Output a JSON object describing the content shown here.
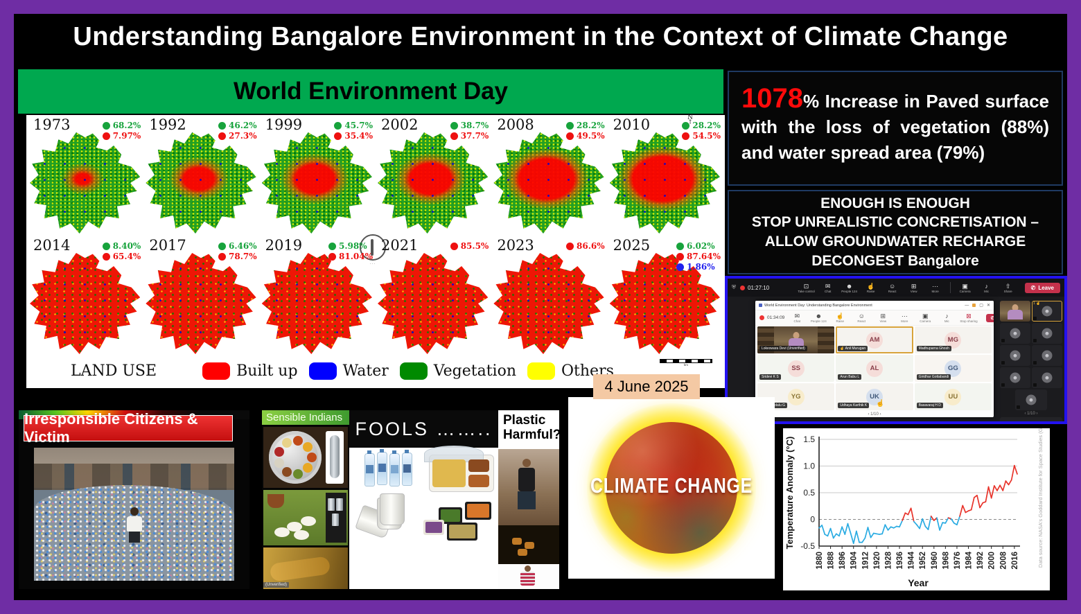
{
  "slide": {
    "title": "Understanding Bangalore Environment in the Context of Climate Change",
    "banner": "World Environment Day",
    "date_label": "4 June 2025"
  },
  "colors": {
    "frame_purple": "#6F2DA4",
    "banner_green": "#00A84F",
    "builtup_red": "#FF0000",
    "water_blue": "#0000FF",
    "vegetation_green": "#008A00",
    "others_yellow": "#FFFF00",
    "date_chip": "#F4C9A4",
    "meeting_border": "#2312F0",
    "highlight_red": "#FF0A0A"
  },
  "maps": {
    "years": [
      {
        "year": "1973",
        "green": "68.2%",
        "red": "7.97%"
      },
      {
        "year": "1992",
        "green": "46.2%",
        "red": "27.3%"
      },
      {
        "year": "1999",
        "green": "45.7%",
        "red": "35.4%"
      },
      {
        "year": "2002",
        "green": "38.7%",
        "red": "37.7%"
      },
      {
        "year": "2008",
        "green": "28.2%",
        "red": "49.5%"
      },
      {
        "year": "2010",
        "green": "28.2%",
        "red": "54.5%",
        "north_arrow": true
      },
      {
        "year": "2014",
        "green": "8.40%",
        "red": "65.4%"
      },
      {
        "year": "2017",
        "green": "6.46%",
        "red": "78.7%"
      },
      {
        "year": "2019",
        "green": "5.98%",
        "red": "81.04%"
      },
      {
        "year": "2021",
        "red": "85.5%"
      },
      {
        "year": "2023",
        "red": "86.6%"
      },
      {
        "year": "2025",
        "green": "6.02%",
        "red": "87.64%",
        "blue": "1.86%"
      }
    ],
    "legend": {
      "title": "LAND USE",
      "items": [
        {
          "label": "Built up",
          "color": "#FF0000"
        },
        {
          "label": "Water",
          "color": "#0000FF"
        },
        {
          "label": "Vegetation",
          "color": "#008A00"
        },
        {
          "label": "Others",
          "color": "#FFFF00"
        }
      ]
    }
  },
  "stats_box": {
    "highlight": "1078",
    "rest": "% Increase in Paved surface with the loss of vegetation (88%) and water spread area (79%)"
  },
  "slogan_box": {
    "lines": [
      "ENOUGH IS ENOUGH",
      "STOP UNREALISTIC CONCRETISATION – ALLOW GROUNDWATER RECHARGE",
      "DECONGEST Bangalore"
    ]
  },
  "meeting": {
    "outer_toolbar": {
      "timer": "01:27:10",
      "buttons": [
        "Take control",
        "Chat",
        "People",
        "Raise",
        "React",
        "View",
        "More"
      ],
      "device_buttons": [
        "Camera",
        "Mic",
        "Share"
      ],
      "people_count": "124",
      "leave_label": "Leave"
    },
    "window_title": "World Environment Day: Understanding Bangalore Environment",
    "inner_toolbar": {
      "timer": "01:34:09",
      "buttons": [
        "Chat",
        "People",
        "Raise",
        "React",
        "View",
        "More"
      ],
      "device_buttons": [
        "Camera",
        "Mic",
        "Stop sharing"
      ],
      "people_count": "124",
      "leave_label": "Leave"
    },
    "participants": [
      {
        "type": "video",
        "name": "Lokeswara Devi (Unverified)"
      },
      {
        "initials": "AM",
        "name": "Anil Murugan",
        "bg": "#f5ddd9",
        "fg": "#8a3f4a",
        "active": true,
        "hand": true
      },
      {
        "initials": "MG",
        "name": "Madhuparna Ghosh",
        "bg": "#f5ddd9",
        "fg": "#8a3f4a"
      },
      {
        "initials": "SS",
        "name": "Sridevi K S",
        "bg": "#f5ddd9",
        "fg": "#8a3f4a"
      },
      {
        "initials": "AL",
        "name": "Arun Babu L",
        "bg": "#f5ddd9",
        "fg": "#8a3f4a"
      },
      {
        "initials": "GG",
        "name": "Giridhar Gottabandi",
        "bg": "#d5dfee",
        "fg": "#40587a"
      },
      {
        "initials": "YG",
        "name": "Yedukondalu G",
        "bg": "#f8eccb",
        "fg": "#8a7334"
      },
      {
        "initials": "UK",
        "name": "Udhaya Karthik K",
        "bg": "#d5dfee",
        "fg": "#40587a",
        "emoji": "☝"
      },
      {
        "initials": "UU",
        "name": "Basavaraj H D",
        "bg": "#f8eccb",
        "fg": "#8a7334"
      }
    ],
    "pagination": "1/10",
    "sidebar": {
      "reaction_badge": "1 ☝",
      "pagination": "1/10"
    }
  },
  "bottom": {
    "irresponsible": {
      "title": "Irresponsible Citizens & Victim"
    },
    "sensible": {
      "title": "Sensible Indians",
      "watermark": "(Unverified)"
    },
    "fools": {
      "title": "FOOLS …….."
    },
    "plastic": {
      "title": "Plastic Harmful?"
    },
    "climate": {
      "title": "CLIMATE CHANGE"
    }
  },
  "chart_data": {
    "type": "line",
    "title": "",
    "xlabel": "Year",
    "ylabel": "Temperature Anomaly (°C)",
    "source_note": "Data source: NASA's Goddard Institute for Space Studies (GISS)",
    "xlim": [
      1880,
      2018
    ],
    "ylim": [
      -0.5,
      1.5
    ],
    "x_ticks": [
      1880,
      1888,
      1896,
      1904,
      1912,
      1920,
      1928,
      1936,
      1944,
      1952,
      1960,
      1968,
      1976,
      1984,
      1992,
      2000,
      2008,
      2016
    ],
    "y_ticks": [
      -0.5,
      0,
      0.5,
      1.0,
      1.5
    ],
    "zero_line_dashed": true,
    "colors": {
      "above_zero": "#e8332a",
      "below_zero": "#29abe2"
    },
    "x": [
      1880,
      1882,
      1884,
      1886,
      1888,
      1890,
      1892,
      1894,
      1896,
      1898,
      1900,
      1902,
      1904,
      1906,
      1908,
      1910,
      1912,
      1914,
      1916,
      1918,
      1920,
      1922,
      1924,
      1926,
      1928,
      1930,
      1932,
      1934,
      1936,
      1938,
      1940,
      1942,
      1944,
      1946,
      1948,
      1950,
      1952,
      1954,
      1956,
      1958,
      1960,
      1962,
      1964,
      1966,
      1968,
      1970,
      1972,
      1974,
      1976,
      1978,
      1980,
      1982,
      1984,
      1986,
      1988,
      1990,
      1992,
      1994,
      1996,
      1998,
      2000,
      2002,
      2004,
      2006,
      2008,
      2010,
      2012,
      2014,
      2016,
      2018
    ],
    "y": [
      -0.16,
      -0.11,
      -0.28,
      -0.31,
      -0.17,
      -0.35,
      -0.27,
      -0.31,
      -0.14,
      -0.28,
      -0.08,
      -0.26,
      -0.45,
      -0.22,
      -0.43,
      -0.43,
      -0.35,
      -0.15,
      -0.34,
      -0.26,
      -0.27,
      -0.28,
      -0.27,
      -0.1,
      -0.2,
      -0.14,
      -0.16,
      -0.13,
      -0.14,
      -0.02,
      0.12,
      0.09,
      0.21,
      -0.04,
      -0.1,
      -0.17,
      0.01,
      -0.13,
      -0.19,
      0.06,
      -0.02,
      0.03,
      -0.2,
      -0.06,
      -0.07,
      0.03,
      0.01,
      -0.07,
      -0.1,
      0.06,
      0.26,
      0.13,
      0.16,
      0.18,
      0.41,
      0.45,
      0.22,
      0.31,
      0.33,
      0.61,
      0.4,
      0.63,
      0.54,
      0.64,
      0.54,
      0.72,
      0.65,
      0.74,
      1.01,
      0.85
    ]
  }
}
